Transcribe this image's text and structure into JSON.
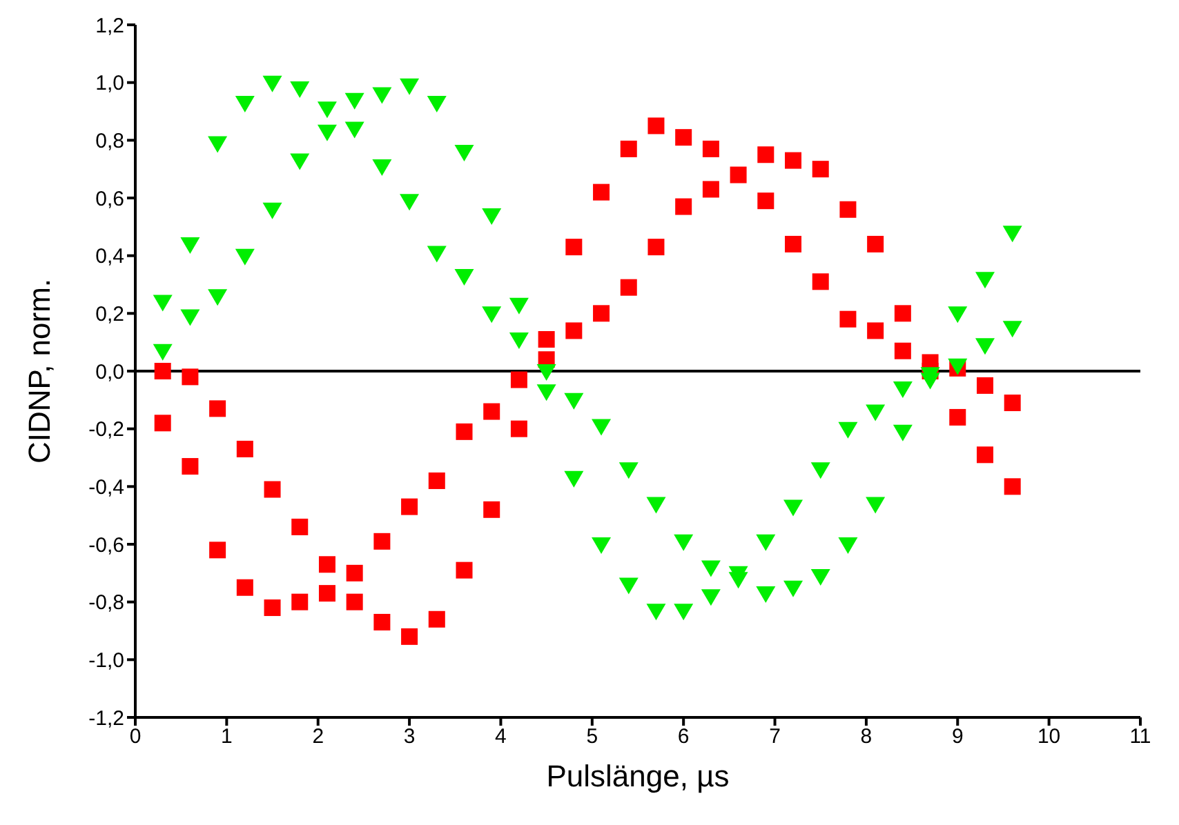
{
  "chart_data": {
    "type": "scatter",
    "xlabel": "Pulslänge, µs",
    "ylabel": "CIDNP, norm.",
    "x": [
      0.3,
      0.6,
      0.9,
      1.2,
      1.5,
      1.8,
      2.1,
      2.4,
      2.7,
      3.0,
      3.3,
      3.6,
      3.9,
      4.2,
      4.5,
      4.8,
      5.1,
      5.4,
      5.7,
      6.0,
      6.3,
      6.6,
      6.9,
      7.2,
      7.5,
      7.8,
      8.1,
      8.4,
      8.7,
      9.0,
      9.3,
      9.6
    ],
    "series": [
      {
        "color": "#ff0000",
        "marker": "square",
        "values": [
          0.0,
          -0.02,
          -0.13,
          -0.27,
          -0.41,
          -0.54,
          -0.67,
          -0.8,
          -0.87,
          -0.92,
          -0.86,
          -0.69,
          -0.48,
          -0.2,
          0.11,
          0.43,
          0.62,
          0.77,
          0.85,
          0.81,
          0.77,
          0.68,
          0.59,
          0.44,
          0.31,
          0.18,
          0.14,
          0.07,
          0.03,
          0.01,
          -0.05,
          -0.11
        ]
      },
      {
        "color": "#ff0000",
        "marker": "square",
        "values": [
          -0.18,
          -0.33,
          -0.62,
          -0.75,
          -0.82,
          -0.8,
          -0.77,
          -0.7,
          -0.59,
          -0.47,
          -0.38,
          -0.21,
          -0.14,
          -0.03,
          0.04,
          0.14,
          0.2,
          0.29,
          0.43,
          0.57,
          0.63,
          null,
          0.75,
          0.73,
          0.7,
          0.56,
          0.44,
          0.2,
          0.0,
          -0.16,
          -0.29,
          -0.4
        ]
      },
      {
        "color": "#00ee00",
        "marker": "triangle",
        "values": [
          0.24,
          0.44,
          0.79,
          0.93,
          1.0,
          0.98,
          0.91,
          0.84,
          0.71,
          0.59,
          0.41,
          0.33,
          0.2,
          0.11,
          0.0,
          -0.1,
          -0.19,
          -0.34,
          -0.46,
          -0.59,
          -0.68,
          -0.72,
          -0.77,
          -0.75,
          -0.71,
          -0.6,
          -0.46,
          -0.21,
          -0.01,
          0.2,
          0.32,
          0.48
        ]
      },
      {
        "color": "#00ee00",
        "marker": "triangle",
        "values": [
          0.07,
          0.19,
          0.26,
          0.4,
          0.56,
          0.73,
          0.83,
          0.94,
          0.96,
          0.99,
          0.93,
          0.76,
          0.54,
          0.23,
          -0.07,
          -0.37,
          -0.6,
          -0.74,
          -0.83,
          -0.83,
          -0.78,
          -0.7,
          -0.59,
          -0.47,
          -0.34,
          -0.2,
          -0.14,
          -0.06,
          -0.03,
          0.02,
          0.09,
          0.15
        ]
      }
    ],
    "xlim": [
      0,
      11
    ],
    "xticks": [
      0,
      1,
      2,
      3,
      4,
      5,
      6,
      7,
      8,
      9,
      10,
      11
    ],
    "ylim": [
      -1.2,
      1.2
    ],
    "yticks": [
      {
        "value": -1.2,
        "label": "-1,2"
      },
      {
        "value": -1.0,
        "label": "-1,0"
      },
      {
        "value": -0.8,
        "label": "-0,8"
      },
      {
        "value": -0.6,
        "label": "-0,6"
      },
      {
        "value": -0.4,
        "label": "-0,4"
      },
      {
        "value": -0.2,
        "label": "-0,2"
      },
      {
        "value": 0,
        "label": "0,0"
      },
      {
        "value": 0.2,
        "label": "0,2"
      },
      {
        "value": 0.4,
        "label": "0,4"
      },
      {
        "value": 0.6,
        "label": "0,6"
      },
      {
        "value": 0.8,
        "label": "0,8"
      },
      {
        "value": 1.0,
        "label": "1,0"
      },
      {
        "value": 1.2,
        "label": "1,2"
      }
    ],
    "ref_lines": [
      {
        "axis": "y",
        "value": 0,
        "color": "#000000"
      }
    ]
  }
}
